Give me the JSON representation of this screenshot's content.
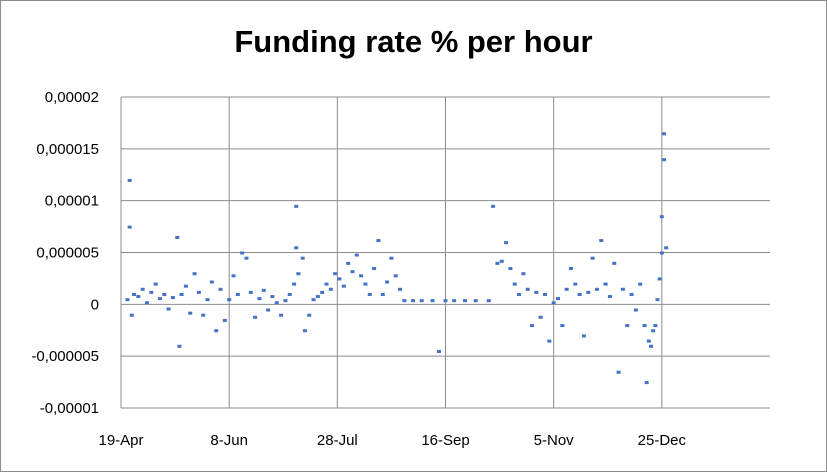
{
  "chart_data": {
    "type": "scatter",
    "title": "Funding rate % per hour",
    "xlabel": "",
    "ylabel": "",
    "x_ticks": [
      "19-Apr",
      "8-Jun",
      "28-Jul",
      "16-Sep",
      "5-Nov",
      "25-Dec"
    ],
    "y_ticks": [
      "0,00002",
      "0,000015",
      "0,00001",
      "0,000005",
      "0",
      "-0,000005",
      "-0,00001"
    ],
    "ylim": [
      -1e-05,
      2e-05
    ],
    "xlim": [
      "19-Apr",
      "25-Dec"
    ],
    "grid": true,
    "legend": "none",
    "marker_color": "#4472c4",
    "series": [
      {
        "points": [
          [
            "22-Apr",
            5e-07
          ],
          [
            "23-Apr",
            1.2e-05
          ],
          [
            "23-Apr",
            7.5e-06
          ],
          [
            "24-Apr",
            -1e-06
          ],
          [
            "25-Apr",
            1e-06
          ],
          [
            "27-Apr",
            8e-07
          ],
          [
            "29-Apr",
            1.5e-06
          ],
          [
            "1-May",
            2e-07
          ],
          [
            "3-May",
            1.2e-06
          ],
          [
            "5-May",
            2e-06
          ],
          [
            "7-May",
            6e-07
          ],
          [
            "9-May",
            1e-06
          ],
          [
            "11-May",
            -4e-07
          ],
          [
            "13-May",
            7e-07
          ],
          [
            "15-May",
            6.5e-06
          ],
          [
            "16-May",
            -4e-06
          ],
          [
            "17-May",
            1e-06
          ],
          [
            "19-May",
            1.8e-06
          ],
          [
            "21-May",
            -8e-07
          ],
          [
            "23-May",
            3e-06
          ],
          [
            "25-May",
            1.2e-06
          ],
          [
            "27-May",
            -1e-06
          ],
          [
            "29-May",
            5e-07
          ],
          [
            "31-May",
            2.2e-06
          ],
          [
            "2-Jun",
            -2.5e-06
          ],
          [
            "4-Jun",
            1.5e-06
          ],
          [
            "6-Jun",
            -1.5e-06
          ],
          [
            "8-Jun",
            5e-07
          ],
          [
            "10-Jun",
            2.8e-06
          ],
          [
            "12-Jun",
            1e-06
          ],
          [
            "14-Jun",
            5e-06
          ],
          [
            "16-Jun",
            4.5e-06
          ],
          [
            "18-Jun",
            1.2e-06
          ],
          [
            "20-Jun",
            -1.2e-06
          ],
          [
            "22-Jun",
            6e-07
          ],
          [
            "24-Jun",
            1.4e-06
          ],
          [
            "26-Jun",
            -5e-07
          ],
          [
            "28-Jun",
            8e-07
          ],
          [
            "30-Jun",
            2e-07
          ],
          [
            "2-Jul",
            -1e-06
          ],
          [
            "4-Jul",
            4e-07
          ],
          [
            "6-Jul",
            1e-06
          ],
          [
            "8-Jul",
            2e-06
          ],
          [
            "9-Jul",
            9.5e-06
          ],
          [
            "9-Jul",
            5.5e-06
          ],
          [
            "10-Jul",
            3e-06
          ],
          [
            "12-Jul",
            4.5e-06
          ],
          [
            "13-Jul",
            -2.5e-06
          ],
          [
            "15-Jul",
            -1e-06
          ],
          [
            "17-Jul",
            5e-07
          ],
          [
            "19-Jul",
            8e-07
          ],
          [
            "21-Jul",
            1.2e-06
          ],
          [
            "23-Jul",
            2e-06
          ],
          [
            "25-Jul",
            1.5e-06
          ],
          [
            "27-Jul",
            3e-06
          ],
          [
            "29-Jul",
            2.5e-06
          ],
          [
            "31-Jul",
            1.8e-06
          ],
          [
            "2-Aug",
            4e-06
          ],
          [
            "4-Aug",
            3.2e-06
          ],
          [
            "6-Aug",
            4.8e-06
          ],
          [
            "8-Aug",
            2.8e-06
          ],
          [
            "10-Aug",
            2e-06
          ],
          [
            "12-Aug",
            1e-06
          ],
          [
            "14-Aug",
            3.5e-06
          ],
          [
            "16-Aug",
            6.2e-06
          ],
          [
            "18-Aug",
            1e-06
          ],
          [
            "20-Aug",
            2.2e-06
          ],
          [
            "22-Aug",
            4.5e-06
          ],
          [
            "24-Aug",
            2.8e-06
          ],
          [
            "26-Aug",
            1.5e-06
          ],
          [
            "28-Aug",
            4e-07
          ],
          [
            "1-Sep",
            4e-07
          ],
          [
            "5-Sep",
            4e-07
          ],
          [
            "10-Sep",
            4e-07
          ],
          [
            "13-Sep",
            -4.5e-06
          ],
          [
            "16-Sep",
            4e-07
          ],
          [
            "20-Sep",
            4e-07
          ],
          [
            "25-Sep",
            4e-07
          ],
          [
            "30-Sep",
            4e-07
          ],
          [
            "6-Oct",
            4e-07
          ],
          [
            "8-Oct",
            9.5e-06
          ],
          [
            "10-Oct",
            4e-06
          ],
          [
            "12-Oct",
            4.2e-06
          ],
          [
            "14-Oct",
            6e-06
          ],
          [
            "16-Oct",
            3.5e-06
          ],
          [
            "18-Oct",
            2e-06
          ],
          [
            "20-Oct",
            1e-06
          ],
          [
            "22-Oct",
            3e-06
          ],
          [
            "24-Oct",
            1.5e-06
          ],
          [
            "26-Oct",
            -2e-06
          ],
          [
            "28-Oct",
            1.2e-06
          ],
          [
            "30-Oct",
            -1.2e-06
          ],
          [
            "1-Nov",
            1e-06
          ],
          [
            "3-Nov",
            -3.5e-06
          ],
          [
            "5-Nov",
            2e-07
          ],
          [
            "7-Nov",
            6e-07
          ],
          [
            "9-Nov",
            -2e-06
          ],
          [
            "11-Nov",
            1.5e-06
          ],
          [
            "13-Nov",
            3.5e-06
          ],
          [
            "15-Nov",
            2e-06
          ],
          [
            "17-Nov",
            1e-06
          ],
          [
            "19-Nov",
            -3e-06
          ],
          [
            "21-Nov",
            1.2e-06
          ],
          [
            "23-Nov",
            4.5e-06
          ],
          [
            "25-Nov",
            1.5e-06
          ],
          [
            "27-Nov",
            6.2e-06
          ],
          [
            "29-Nov",
            2e-06
          ],
          [
            "1-Dec",
            8e-07
          ],
          [
            "3-Dec",
            4e-06
          ],
          [
            "5-Dec",
            -6.5e-06
          ],
          [
            "7-Dec",
            1.5e-06
          ],
          [
            "9-Dec",
            -2e-06
          ],
          [
            "11-Dec",
            1e-06
          ],
          [
            "13-Dec",
            -5e-07
          ],
          [
            "15-Dec",
            2e-06
          ],
          [
            "17-Dec",
            -2e-06
          ],
          [
            "18-Dec",
            -7.5e-06
          ],
          [
            "19-Dec",
            -3.5e-06
          ],
          [
            "20-Dec",
            -4e-06
          ],
          [
            "21-Dec",
            -2.5e-06
          ],
          [
            "22-Dec",
            -2e-06
          ],
          [
            "23-Dec",
            5e-07
          ],
          [
            "24-Dec",
            2.5e-06
          ],
          [
            "25-Dec",
            5e-06
          ],
          [
            "25-Dec",
            8.5e-06
          ],
          [
            "26-Dec",
            1.65e-05
          ],
          [
            "26-Dec",
            1.4e-05
          ],
          [
            "27-Dec",
            5.5e-06
          ]
        ]
      }
    ]
  }
}
